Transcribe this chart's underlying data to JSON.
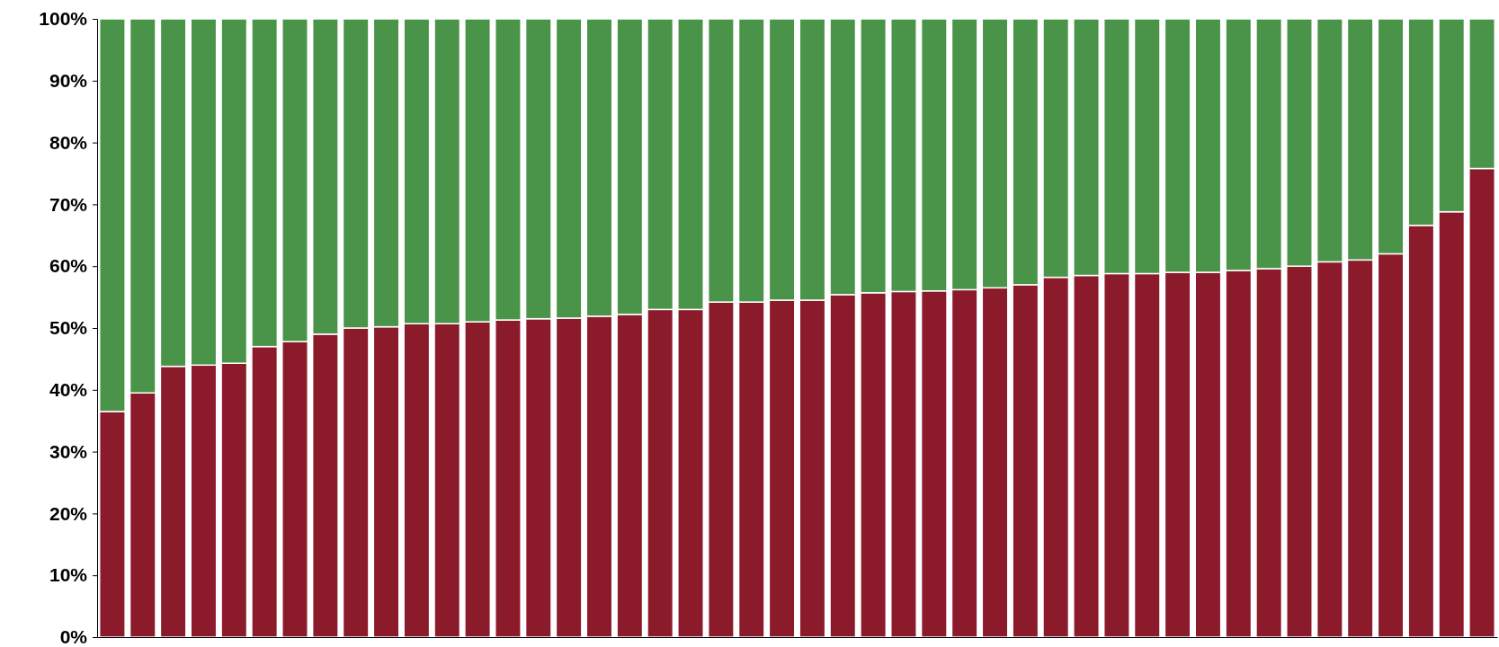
{
  "chart_data": {
    "type": "bar",
    "stacked": true,
    "categories": [
      null,
      null,
      null,
      null,
      null,
      null,
      null,
      null,
      null,
      null,
      null,
      null,
      null,
      null,
      null,
      null,
      null,
      null,
      null,
      null,
      null,
      null,
      null,
      null,
      null,
      null,
      null,
      null,
      null,
      null,
      null,
      null,
      null,
      null,
      null,
      null,
      null,
      null,
      null,
      null,
      null,
      null,
      null,
      null,
      null,
      null
    ],
    "series": [
      {
        "color": "#8b1a2b",
        "values": [
          36.5,
          39.5,
          43.8,
          44,
          44.3,
          47,
          47.8,
          49,
          50,
          50.2,
          50.7,
          50.7,
          51,
          51.3,
          51.5,
          51.6,
          51.9,
          52.2,
          53,
          53,
          54.2,
          54.2,
          54.5,
          54.5,
          55.4,
          55.7,
          55.9,
          56,
          56.2,
          56.5,
          57,
          58.2,
          58.5,
          58.8,
          58.8,
          59,
          59,
          59.3,
          59.6,
          60,
          60.7,
          61,
          62,
          66.6,
          68.8,
          75.8
        ]
      },
      {
        "color": "#4a9449",
        "values": [
          63.5,
          60.5,
          56.2,
          56,
          55.7,
          53,
          52.2,
          51,
          50,
          49.8,
          49.3,
          49.3,
          49,
          48.7,
          48.5,
          48.4,
          48.1,
          47.8,
          47,
          47,
          45.8,
          45.8,
          45.5,
          45.5,
          44.6,
          44.3,
          44.1,
          44,
          43.8,
          43.5,
          43,
          41.8,
          41.5,
          41.2,
          41.2,
          41,
          41,
          40.7,
          40.4,
          40,
          39.3,
          39,
          38,
          33.4,
          31.2,
          24.2
        ]
      }
    ],
    "ylim": [
      0,
      100
    ],
    "yticks": [
      {
        "value": 0,
        "label": "0%"
      },
      {
        "value": 10,
        "label": "10%"
      },
      {
        "value": 20,
        "label": "20%"
      },
      {
        "value": 30,
        "label": "30%"
      },
      {
        "value": 40,
        "label": "40%"
      },
      {
        "value": 50,
        "label": "50%"
      },
      {
        "value": 60,
        "label": "60%"
      },
      {
        "value": 70,
        "label": "70%"
      },
      {
        "value": 80,
        "label": "80%"
      },
      {
        "value": 90,
        "label": "90%"
      },
      {
        "value": 100,
        "label": "100%"
      }
    ],
    "grid": false
  }
}
